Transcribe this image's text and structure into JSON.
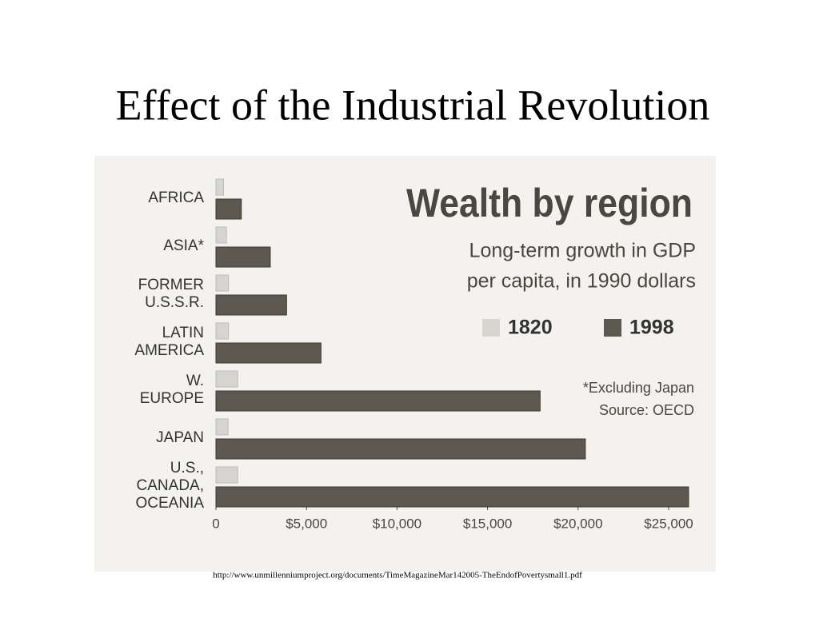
{
  "slide_title": "Effect of the Industrial Revolution",
  "source_url": "http://www.unmillenniumproject.org/documents/TimeMagazineMar142005-TheEndofPovertysmall1.pdf",
  "chart_data": {
    "type": "bar",
    "orientation": "horizontal",
    "title": "Wealth by region",
    "subtitle": [
      "Long-term growth in GDP",
      "per capita, in 1990 dollars"
    ],
    "annotations": [
      "*Excluding Japan",
      "Source: OECD"
    ],
    "categories": [
      [
        "AFRICA"
      ],
      [
        "ASIA*"
      ],
      [
        "FORMER",
        "U.S.S.R."
      ],
      [
        "LATIN",
        "AMERICA"
      ],
      [
        "W.",
        "EUROPE"
      ],
      [
        "JAPAN"
      ],
      [
        "U.S.,",
        "CANADA,",
        "OCEANIA"
      ]
    ],
    "series": [
      {
        "name": "1820",
        "color": "#d6d5d0",
        "values": [
          420,
          580,
          690,
          690,
          1200,
          670,
          1200
        ]
      },
      {
        "name": "1998",
        "color": "#5e5950",
        "values": [
          1400,
          3000,
          3900,
          5800,
          17900,
          20400,
          26100
        ]
      }
    ],
    "xlim": [
      0,
      26500
    ],
    "xticks": [
      0,
      {
        "value": 5000,
        "label": "$5,000"
      },
      {
        "value": 10000,
        "label": "$10,000"
      },
      {
        "value": 15000,
        "label": "$15,000"
      },
      {
        "value": 20000,
        "label": "$20,000"
      },
      {
        "value": 25000,
        "label": "$25,000"
      }
    ],
    "legend": "top-right",
    "grid": false
  }
}
